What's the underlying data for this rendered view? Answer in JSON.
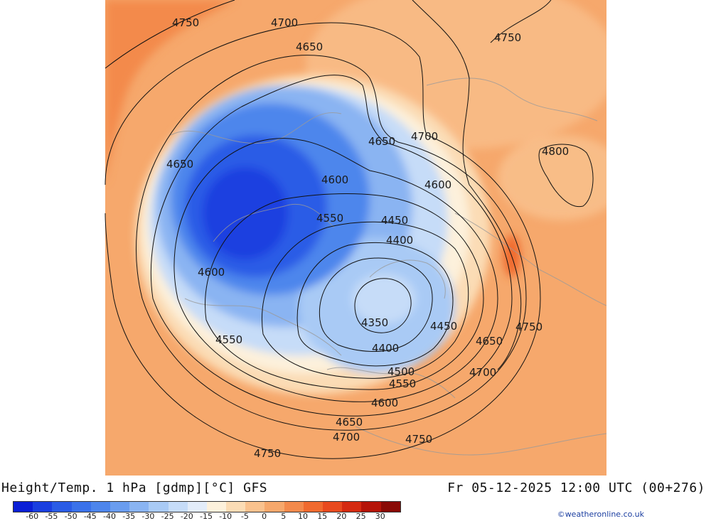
{
  "title": "Height/Temp. 1 hPa [gdmp][°C] GFS",
  "datetime": "Fr 05-12-2025 12:00 UTC (00+276)",
  "credit": "©weatheronline.co.uk",
  "colorbar": {
    "ticks": [
      "-60",
      "-55",
      "-50",
      "-45",
      "-40",
      "-35",
      "-30",
      "-25",
      "-20",
      "-15",
      "-10",
      "-5",
      "0",
      "5",
      "10",
      "15",
      "20",
      "25",
      "30"
    ],
    "colors": [
      "#0b1fd6",
      "#1a3fe0",
      "#2a5ce6",
      "#3a72ea",
      "#4d86ec",
      "#6a9def",
      "#8ab4f2",
      "#a9caf5",
      "#c6dcf8",
      "#e3ecf9",
      "#fdf1dc",
      "#fbdcb5",
      "#f9c28e",
      "#f6a86c",
      "#f38a4c",
      "#f06a2e",
      "#e84a1e",
      "#d52a10",
      "#b51408",
      "#8a0a05"
    ]
  },
  "contour_labels": [
    "4750",
    "4700",
    "4650",
    "4750",
    "4700",
    "4650",
    "4800",
    "4650",
    "4600",
    "4600",
    "4550",
    "4450",
    "4400",
    "4600",
    "4350",
    "4450",
    "4750",
    "4650",
    "4550",
    "4400",
    "4500",
    "4700",
    "4550",
    "4600",
    "4650",
    "4700",
    "4750",
    "4750"
  ]
}
